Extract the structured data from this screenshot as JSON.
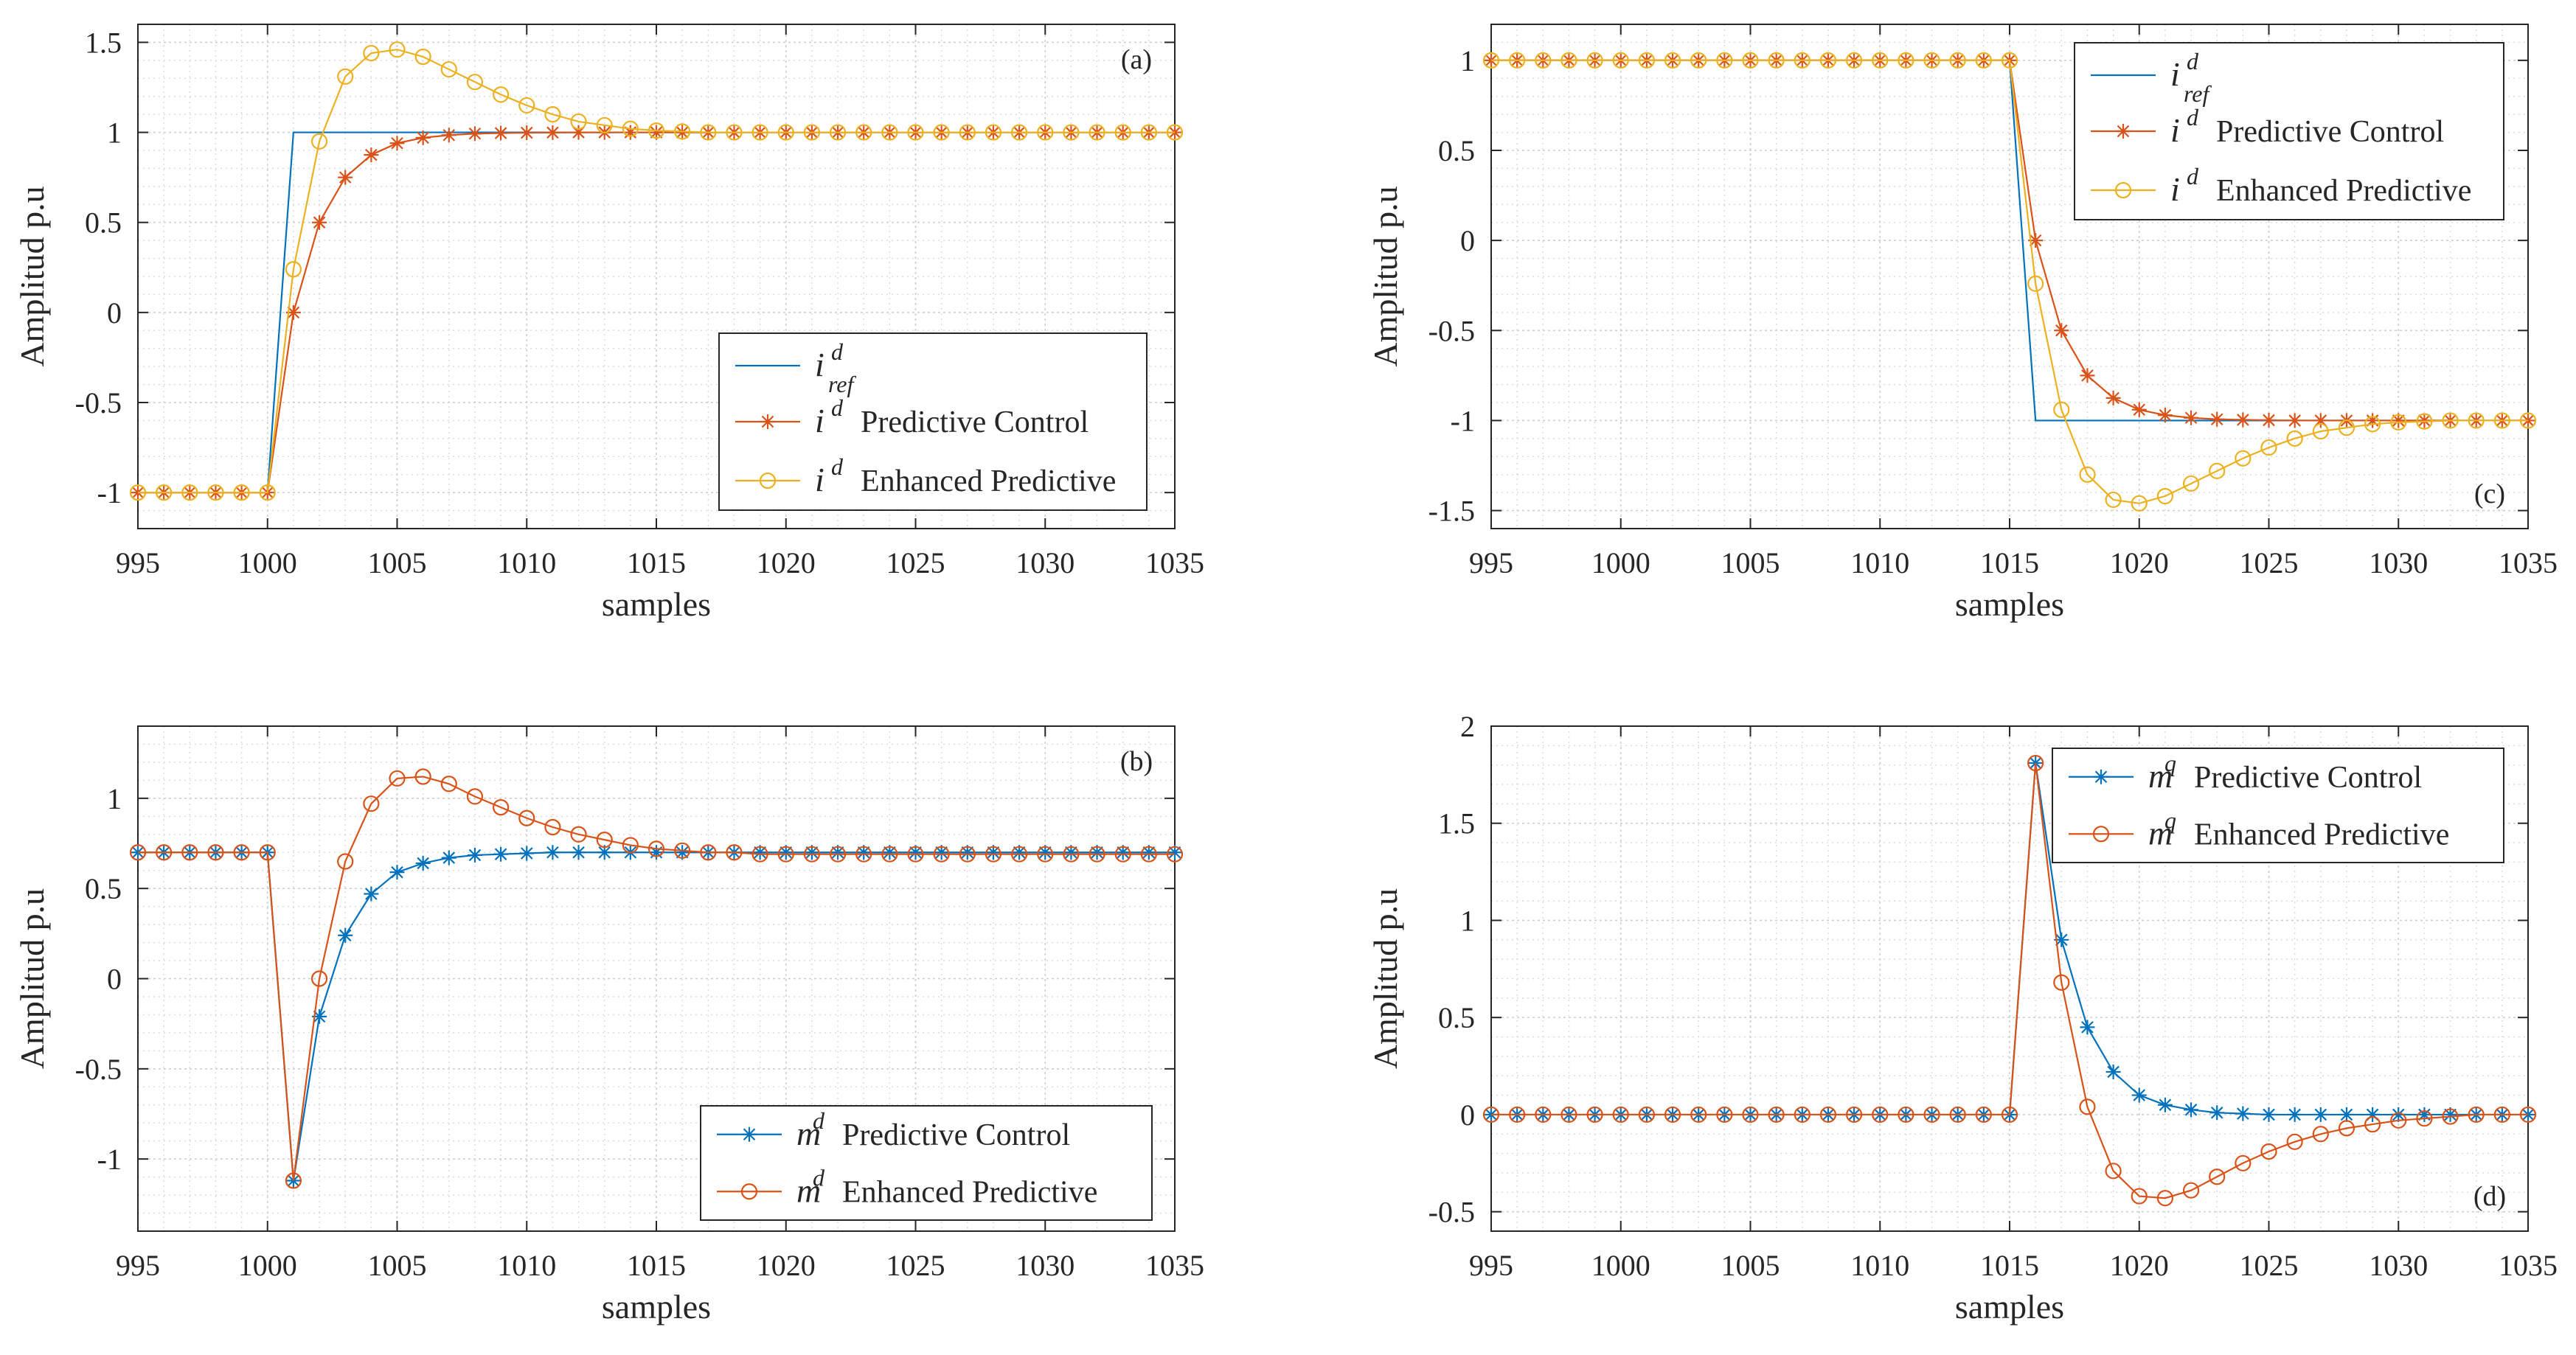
{
  "figure": {
    "background": "#ffffff",
    "axis_color": "#262626",
    "grid_color": "#dcdcdc"
  },
  "colors": {
    "blue": "#0072BD",
    "red": "#D95319",
    "yellow": "#EDB120"
  },
  "chart_data": [
    {
      "id": "a",
      "type": "line",
      "panel_label": "(a)",
      "xlabel": "samples",
      "ylabel": "Amplitud p.u",
      "xlim": [
        995,
        1035
      ],
      "ylim": [
        -1.2,
        1.6
      ],
      "xticks": [
        995,
        1000,
        1005,
        1010,
        1015,
        1020,
        1025,
        1030,
        1035
      ],
      "yticks": [
        -1,
        -0.5,
        0,
        0.5,
        1,
        1.5
      ],
      "ytick_labels": [
        "-1",
        "-0.5",
        "0",
        "0.5",
        "1",
        "1.5"
      ],
      "grid": "on (minor dotted)",
      "legend": "lower-right",
      "series": [
        {
          "legend_label": {
            "var": "i",
            "sup": "d",
            "sub": "ref",
            "text": ""
          },
          "color": "#0072BD",
          "marker": "none",
          "x": [
            995,
            1000,
            1001,
            1035
          ],
          "y": [
            -1,
            -1,
            1,
            1
          ]
        },
        {
          "legend_label": {
            "var": "i",
            "sup": "d",
            "sub": "",
            "text": "Predictive Control"
          },
          "color": "#D95319",
          "marker": "star",
          "x": [
            995,
            996,
            997,
            998,
            999,
            1000,
            1001,
            1002,
            1003,
            1004,
            1005,
            1006,
            1007,
            1008,
            1009,
            1010,
            1011,
            1012,
            1013,
            1014,
            1015,
            1016,
            1017,
            1018,
            1019,
            1020,
            1021,
            1022,
            1023,
            1024,
            1025,
            1026,
            1027,
            1028,
            1029,
            1030,
            1031,
            1032,
            1033,
            1034,
            1035
          ],
          "y": [
            -1,
            -1,
            -1,
            -1,
            -1,
            -1,
            0,
            0.5,
            0.75,
            0.875,
            0.94,
            0.97,
            0.985,
            0.993,
            0.996,
            0.998,
            0.999,
            1,
            1,
            1,
            1,
            1,
            1,
            1,
            1,
            1,
            1,
            1,
            1,
            1,
            1,
            1,
            1,
            1,
            1,
            1,
            1,
            1,
            1,
            1,
            1
          ]
        },
        {
          "legend_label": {
            "var": "i",
            "sup": "d",
            "sub": "",
            "text": "Enhanced Predictive"
          },
          "color": "#EDB120",
          "marker": "circle",
          "x": [
            995,
            996,
            997,
            998,
            999,
            1000,
            1001,
            1002,
            1003,
            1004,
            1005,
            1006,
            1007,
            1008,
            1009,
            1010,
            1011,
            1012,
            1013,
            1014,
            1015,
            1016,
            1017,
            1018,
            1019,
            1020,
            1021,
            1022,
            1023,
            1024,
            1025,
            1026,
            1027,
            1028,
            1029,
            1030,
            1031,
            1032,
            1033,
            1034,
            1035
          ],
          "y": [
            -1,
            -1,
            -1,
            -1,
            -1,
            -1,
            0.24,
            0.95,
            1.31,
            1.44,
            1.46,
            1.42,
            1.35,
            1.28,
            1.21,
            1.15,
            1.1,
            1.06,
            1.04,
            1.02,
            1.01,
            1.005,
            1,
            1,
            1,
            1,
            1,
            1,
            1,
            1,
            1,
            1,
            1,
            1,
            1,
            1,
            1,
            1,
            1,
            1,
            1
          ]
        }
      ]
    },
    {
      "id": "b",
      "type": "line",
      "panel_label": "(b)",
      "xlabel": "samples",
      "ylabel": "Amplitud p.u",
      "xlim": [
        995,
        1035
      ],
      "ylim": [
        -1.4,
        1.4
      ],
      "xticks": [
        995,
        1000,
        1005,
        1010,
        1015,
        1020,
        1025,
        1030,
        1035
      ],
      "yticks": [
        -1,
        -0.5,
        0,
        0.5,
        1
      ],
      "ytick_labels": [
        "-1",
        "-0.5",
        "0",
        "0.5",
        "1"
      ],
      "grid": "on (minor dotted)",
      "legend": "lower-right",
      "series": [
        {
          "legend_label": {
            "var": "m",
            "sup": "d",
            "sub": "",
            "text": "Predictive Control"
          },
          "color": "#0072BD",
          "marker": "star",
          "x": [
            995,
            996,
            997,
            998,
            999,
            1000,
            1001,
            1002,
            1003,
            1004,
            1005,
            1006,
            1007,
            1008,
            1009,
            1010,
            1011,
            1012,
            1013,
            1014,
            1015,
            1016,
            1017,
            1018,
            1019,
            1020,
            1021,
            1022,
            1023,
            1024,
            1025,
            1026,
            1027,
            1028,
            1029,
            1030,
            1031,
            1032,
            1033,
            1034,
            1035
          ],
          "y": [
            0.7,
            0.7,
            0.7,
            0.7,
            0.7,
            0.7,
            -1.12,
            -0.21,
            0.24,
            0.47,
            0.59,
            0.64,
            0.67,
            0.685,
            0.69,
            0.695,
            0.7,
            0.7,
            0.7,
            0.7,
            0.7,
            0.7,
            0.7,
            0.7,
            0.7,
            0.7,
            0.7,
            0.7,
            0.7,
            0.7,
            0.7,
            0.7,
            0.7,
            0.7,
            0.7,
            0.7,
            0.7,
            0.7,
            0.7,
            0.7,
            0.7
          ]
        },
        {
          "legend_label": {
            "var": "m",
            "sup": "d",
            "sub": "",
            "text": "Enhanced Predictive"
          },
          "color": "#D95319",
          "marker": "circle",
          "x": [
            995,
            996,
            997,
            998,
            999,
            1000,
            1001,
            1002,
            1003,
            1004,
            1005,
            1006,
            1007,
            1008,
            1009,
            1010,
            1011,
            1012,
            1013,
            1014,
            1015,
            1016,
            1017,
            1018,
            1019,
            1020,
            1021,
            1022,
            1023,
            1024,
            1025,
            1026,
            1027,
            1028,
            1029,
            1030,
            1031,
            1032,
            1033,
            1034,
            1035
          ],
          "y": [
            0.7,
            0.7,
            0.7,
            0.7,
            0.7,
            0.7,
            -1.12,
            0,
            0.65,
            0.97,
            1.11,
            1.12,
            1.08,
            1.01,
            0.95,
            0.89,
            0.84,
            0.8,
            0.77,
            0.74,
            0.72,
            0.71,
            0.7,
            0.7,
            0.69,
            0.69,
            0.69,
            0.69,
            0.69,
            0.69,
            0.69,
            0.69,
            0.69,
            0.69,
            0.69,
            0.69,
            0.69,
            0.69,
            0.69,
            0.69,
            0.69
          ]
        }
      ]
    },
    {
      "id": "c",
      "type": "line",
      "panel_label": "(c)",
      "xlabel": "samples",
      "ylabel": "Amplitud p.u",
      "xlim": [
        995,
        1035
      ],
      "ylim": [
        -1.6,
        1.2
      ],
      "xticks": [
        995,
        1000,
        1005,
        1010,
        1015,
        1020,
        1025,
        1030,
        1035
      ],
      "yticks": [
        -1.5,
        -1,
        -0.5,
        0,
        0.5,
        1
      ],
      "ytick_labels": [
        "-1.5",
        "-1",
        "-0.5",
        "0",
        "0.5",
        "1"
      ],
      "grid": "on (minor dotted)",
      "legend": "top-right",
      "series": [
        {
          "legend_label": {
            "var": "i",
            "sup": "d",
            "sub": "ref",
            "text": ""
          },
          "color": "#0072BD",
          "marker": "none",
          "x": [
            995,
            1015,
            1016,
            1035
          ],
          "y": [
            1,
            1,
            -1,
            -1
          ]
        },
        {
          "legend_label": {
            "var": "i",
            "sup": "d",
            "sub": "",
            "text": "Predictive Control"
          },
          "color": "#D95319",
          "marker": "star",
          "x": [
            995,
            996,
            997,
            998,
            999,
            1000,
            1001,
            1002,
            1003,
            1004,
            1005,
            1006,
            1007,
            1008,
            1009,
            1010,
            1011,
            1012,
            1013,
            1014,
            1015,
            1016,
            1017,
            1018,
            1019,
            1020,
            1021,
            1022,
            1023,
            1024,
            1025,
            1026,
            1027,
            1028,
            1029,
            1030,
            1031,
            1032,
            1033,
            1034,
            1035
          ],
          "y": [
            1,
            1,
            1,
            1,
            1,
            1,
            1,
            1,
            1,
            1,
            1,
            1,
            1,
            1,
            1,
            1,
            1,
            1,
            1,
            1,
            1,
            0,
            -0.5,
            -0.75,
            -0.875,
            -0.94,
            -0.97,
            -0.985,
            -0.993,
            -0.996,
            -0.998,
            -1,
            -1,
            -1,
            -1,
            -1,
            -1,
            -1,
            -1,
            -1,
            -1
          ]
        },
        {
          "legend_label": {
            "var": "i",
            "sup": "d",
            "sub": "",
            "text": "Enhanced Predictive"
          },
          "color": "#EDB120",
          "marker": "circle",
          "x": [
            995,
            996,
            997,
            998,
            999,
            1000,
            1001,
            1002,
            1003,
            1004,
            1005,
            1006,
            1007,
            1008,
            1009,
            1010,
            1011,
            1012,
            1013,
            1014,
            1015,
            1016,
            1017,
            1018,
            1019,
            1020,
            1021,
            1022,
            1023,
            1024,
            1025,
            1026,
            1027,
            1028,
            1029,
            1030,
            1031,
            1032,
            1033,
            1034,
            1035
          ],
          "y": [
            1,
            1,
            1,
            1,
            1,
            1,
            1,
            1,
            1,
            1,
            1,
            1,
            1,
            1,
            1,
            1,
            1,
            1,
            1,
            1,
            1,
            -0.24,
            -0.94,
            -1.3,
            -1.44,
            -1.46,
            -1.42,
            -1.35,
            -1.28,
            -1.21,
            -1.15,
            -1.1,
            -1.06,
            -1.04,
            -1.02,
            -1.01,
            -1.005,
            -1,
            -1,
            -1,
            -1
          ]
        }
      ]
    },
    {
      "id": "d",
      "type": "line",
      "panel_label": "(d)",
      "xlabel": "samples",
      "ylabel": "Amplitud p.u",
      "xlim": [
        995,
        1035
      ],
      "ylim": [
        -0.6,
        2
      ],
      "xticks": [
        995,
        1000,
        1005,
        1010,
        1015,
        1020,
        1025,
        1030,
        1035
      ],
      "yticks": [
        -0.5,
        0,
        0.5,
        1,
        1.5,
        2
      ],
      "ytick_labels": [
        "-0.5",
        "0",
        "0.5",
        "1",
        "1.5",
        "2"
      ],
      "grid": "on (minor dotted)",
      "legend": "top-right",
      "series": [
        {
          "legend_label": {
            "var": "m",
            "sup": "q",
            "sub": "",
            "text": "Predictive Control"
          },
          "color": "#0072BD",
          "marker": "star",
          "x": [
            995,
            996,
            997,
            998,
            999,
            1000,
            1001,
            1002,
            1003,
            1004,
            1005,
            1006,
            1007,
            1008,
            1009,
            1010,
            1011,
            1012,
            1013,
            1014,
            1015,
            1016,
            1017,
            1018,
            1019,
            1020,
            1021,
            1022,
            1023,
            1024,
            1025,
            1026,
            1027,
            1028,
            1029,
            1030,
            1031,
            1032,
            1033,
            1034,
            1035
          ],
          "y": [
            0,
            0,
            0,
            0,
            0,
            0,
            0,
            0,
            0,
            0,
            0,
            0,
            0,
            0,
            0,
            0,
            0,
            0,
            0,
            0,
            0,
            1.81,
            0.9,
            0.45,
            0.22,
            0.1,
            0.05,
            0.025,
            0.01,
            0.005,
            0,
            0,
            0,
            0,
            0,
            0,
            0,
            0,
            0,
            0,
            0
          ]
        },
        {
          "legend_label": {
            "var": "m",
            "sup": "q",
            "sub": "",
            "text": "Enhanced Predictive"
          },
          "color": "#D95319",
          "marker": "circle",
          "x": [
            995,
            996,
            997,
            998,
            999,
            1000,
            1001,
            1002,
            1003,
            1004,
            1005,
            1006,
            1007,
            1008,
            1009,
            1010,
            1011,
            1012,
            1013,
            1014,
            1015,
            1016,
            1017,
            1018,
            1019,
            1020,
            1021,
            1022,
            1023,
            1024,
            1025,
            1026,
            1027,
            1028,
            1029,
            1030,
            1031,
            1032,
            1033,
            1034,
            1035
          ],
          "y": [
            0,
            0,
            0,
            0,
            0,
            0,
            0,
            0,
            0,
            0,
            0,
            0,
            0,
            0,
            0,
            0,
            0,
            0,
            0,
            0,
            0,
            1.81,
            0.68,
            0.04,
            -0.29,
            -0.42,
            -0.43,
            -0.39,
            -0.32,
            -0.25,
            -0.19,
            -0.14,
            -0.1,
            -0.07,
            -0.05,
            -0.03,
            -0.02,
            -0.01,
            0,
            0,
            0
          ]
        }
      ]
    }
  ]
}
